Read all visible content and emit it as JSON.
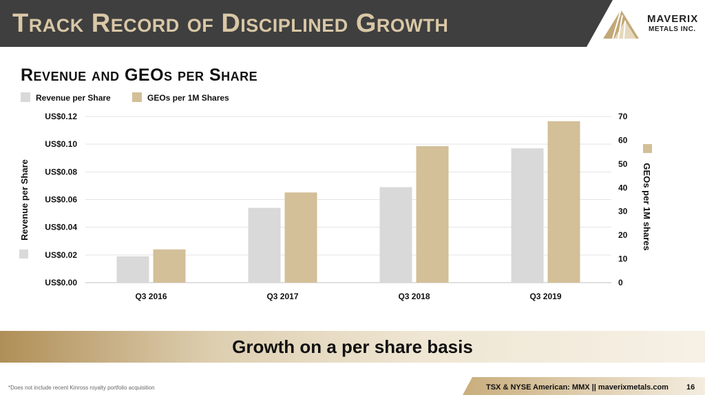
{
  "header": {
    "title": "Track Record of Disciplined Growth"
  },
  "logo": {
    "name": "MAVERIX",
    "sub": "METALS INC."
  },
  "chart_data": {
    "type": "bar",
    "title": "Revenue and GEOs per Share",
    "categories": [
      "Q3 2016",
      "Q3 2017",
      "Q3 2018",
      "Q3 2019"
    ],
    "series": [
      {
        "name": "Revenue per Share",
        "axis": "left",
        "values": [
          0.019,
          0.054,
          0.069,
          0.097
        ],
        "color": "#d9d9d9"
      },
      {
        "name": "GEOs per 1M Shares",
        "axis": "right",
        "values": [
          14,
          38,
          57.5,
          68
        ],
        "color": "#d3bf98"
      }
    ],
    "ylabel": "Revenue per Share",
    "y2label": "GEOs per 1M shares",
    "ylim": [
      0,
      0.12
    ],
    "y2lim": [
      0,
      70
    ],
    "yticks": [
      "US$0.00",
      "US$0.02",
      "US$0.04",
      "US$0.06",
      "US$0.08",
      "US$0.10",
      "US$0.12"
    ],
    "y2ticks": [
      "0",
      "10",
      "20",
      "30",
      "40",
      "50",
      "60",
      "70"
    ],
    "legend": "top-left",
    "grid": true
  },
  "banner": {
    "text": "Growth on a per share basis"
  },
  "footnote": "*Does not include recent Kinross royalty portfolio acquisition",
  "footer": {
    "text": "TSX & NYSE American: MMX   ||   maverixmetals.com",
    "page": "16"
  },
  "colors": {
    "header_bg": "#3f3f3f",
    "gold": "#c2a878",
    "gold_light": "#efe6d3",
    "bar_gray": "#d9d9d9",
    "bar_gold": "#d3bf98"
  }
}
